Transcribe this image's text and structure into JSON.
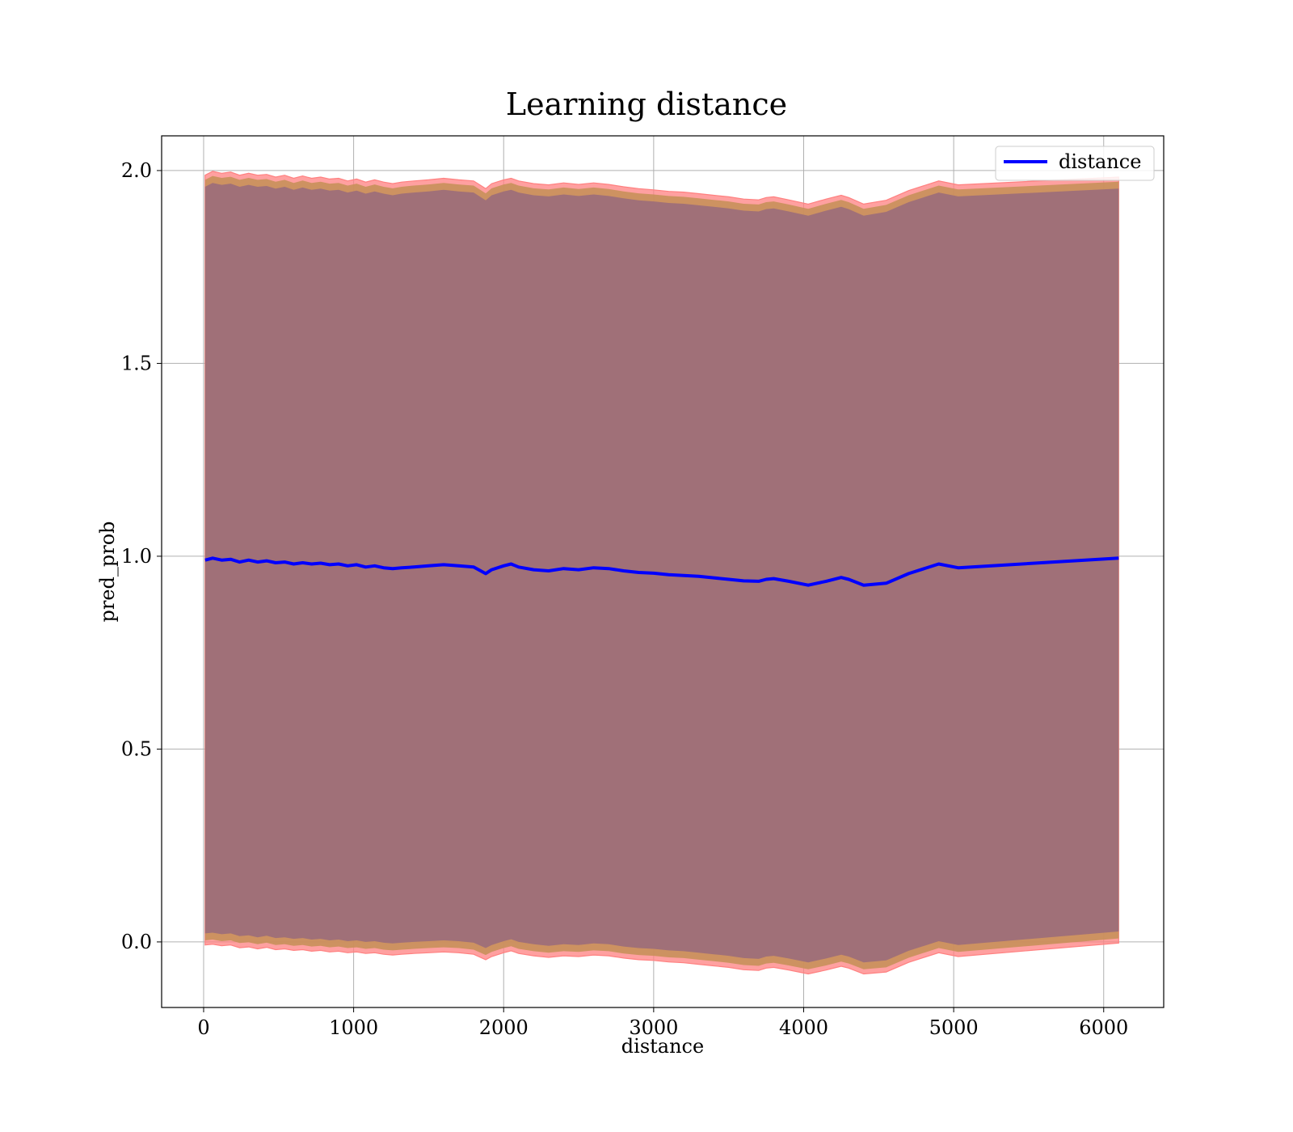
{
  "chart_data": {
    "type": "line",
    "title": "Learning distance",
    "xlabel": "distance",
    "ylabel": "pred_prob",
    "xlim": [
      -280,
      6400
    ],
    "ylim": [
      -0.17,
      2.09
    ],
    "xticks": [
      0,
      1000,
      2000,
      3000,
      4000,
      5000,
      6000
    ],
    "xtick_labels": [
      "0",
      "1000",
      "2000",
      "3000",
      "4000",
      "5000",
      "6000"
    ],
    "yticks": [
      0.0,
      0.5,
      1.0,
      1.5,
      2.0
    ],
    "ytick_labels": [
      "0.0",
      "0.5",
      "1.0",
      "1.5",
      "2.0"
    ],
    "grid": true,
    "legend": {
      "position": "top-right",
      "entries": [
        "distance"
      ]
    },
    "colors": {
      "line": "#0000ff",
      "band_outer": "#ff8080",
      "band_mid": "#c8905a",
      "band_inner": "#a07078"
    },
    "series": [
      {
        "name": "distance",
        "x": [
          10,
          60,
          120,
          180,
          240,
          300,
          360,
          420,
          480,
          540,
          600,
          660,
          720,
          780,
          840,
          900,
          960,
          1020,
          1080,
          1140,
          1200,
          1260,
          1320,
          1400,
          1500,
          1600,
          1700,
          1800,
          1880,
          1920,
          2000,
          2050,
          2100,
          2200,
          2300,
          2400,
          2500,
          2600,
          2700,
          2800,
          2900,
          3000,
          3100,
          3200,
          3300,
          3400,
          3500,
          3600,
          3700,
          3750,
          3800,
          3900,
          4030,
          4150,
          4250,
          4300,
          4400,
          4550,
          4700,
          4900,
          5030,
          6100
        ],
        "y": [
          0.99,
          0.995,
          0.99,
          0.992,
          0.985,
          0.99,
          0.985,
          0.988,
          0.983,
          0.985,
          0.98,
          0.983,
          0.98,
          0.982,
          0.978,
          0.98,
          0.975,
          0.978,
          0.972,
          0.975,
          0.97,
          0.968,
          0.97,
          0.972,
          0.975,
          0.978,
          0.975,
          0.972,
          0.955,
          0.965,
          0.975,
          0.98,
          0.972,
          0.965,
          0.962,
          0.968,
          0.965,
          0.97,
          0.968,
          0.962,
          0.958,
          0.956,
          0.952,
          0.95,
          0.948,
          0.944,
          0.94,
          0.936,
          0.935,
          0.94,
          0.942,
          0.935,
          0.925,
          0.935,
          0.945,
          0.94,
          0.925,
          0.93,
          0.955,
          0.98,
          0.97,
          0.995
        ],
        "band_upper": [
          1.97,
          1.98,
          1.975,
          1.978,
          1.97,
          1.975,
          1.97,
          1.972,
          1.965,
          1.97,
          1.962,
          1.968,
          1.962,
          1.965,
          1.96,
          1.962,
          1.955,
          1.96,
          1.952,
          1.958,
          1.952,
          1.948,
          1.952,
          1.955,
          1.958,
          1.962,
          1.958,
          1.955,
          1.935,
          1.948,
          1.958,
          1.962,
          1.955,
          1.948,
          1.945,
          1.95,
          1.946,
          1.95,
          1.946,
          1.94,
          1.935,
          1.932,
          1.928,
          1.926,
          1.922,
          1.918,
          1.914,
          1.908,
          1.906,
          1.912,
          1.914,
          1.906,
          1.895,
          1.908,
          1.918,
          1.912,
          1.895,
          1.905,
          1.93,
          1.955,
          1.945,
          1.965
        ],
        "band_lower": [
          0.01,
          0.012,
          0.008,
          0.01,
          0.003,
          0.005,
          0.0,
          0.004,
          -0.002,
          0.0,
          -0.004,
          -0.002,
          -0.006,
          -0.004,
          -0.008,
          -0.006,
          -0.01,
          -0.008,
          -0.012,
          -0.01,
          -0.014,
          -0.016,
          -0.014,
          -0.012,
          -0.01,
          -0.008,
          -0.01,
          -0.014,
          -0.028,
          -0.02,
          -0.01,
          -0.005,
          -0.012,
          -0.018,
          -0.022,
          -0.018,
          -0.02,
          -0.016,
          -0.018,
          -0.024,
          -0.028,
          -0.03,
          -0.034,
          -0.036,
          -0.04,
          -0.044,
          -0.048,
          -0.054,
          -0.056,
          -0.05,
          -0.048,
          -0.055,
          -0.065,
          -0.055,
          -0.045,
          -0.05,
          -0.065,
          -0.06,
          -0.035,
          -0.01,
          -0.02,
          0.015
        ]
      }
    ]
  }
}
